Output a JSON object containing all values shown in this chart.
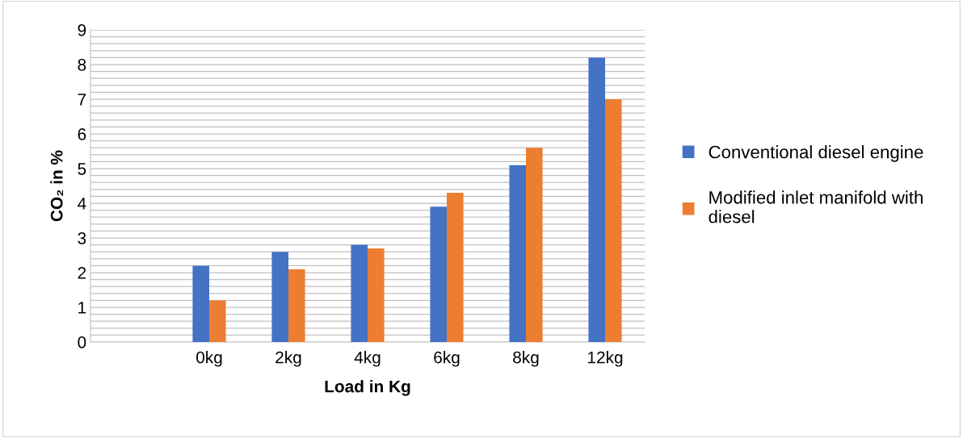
{
  "chart_data": {
    "type": "bar",
    "xlabel": "Load in Kg",
    "ylabel": "CO₂ in %",
    "categories": [
      null,
      "0kg",
      "2kg",
      "4kg",
      "6kg",
      "8kg",
      "12kg"
    ],
    "series": [
      {
        "name": "Conventional diesel engine",
        "color": "#4472c4",
        "values": [
          null,
          2.2,
          2.6,
          2.8,
          3.9,
          5.1,
          8.2
        ]
      },
      {
        "name": "Modified inlet manifold with diesel",
        "color": "#ed7d31",
        "values": [
          null,
          1.2,
          2.1,
          2.7,
          4.3,
          5.6,
          7.0
        ]
      }
    ],
    "ylim": [
      0,
      9
    ],
    "yticks": [
      0,
      1,
      2,
      3,
      4,
      5,
      6,
      7,
      8,
      9
    ],
    "grid": "y",
    "legend": "right"
  }
}
